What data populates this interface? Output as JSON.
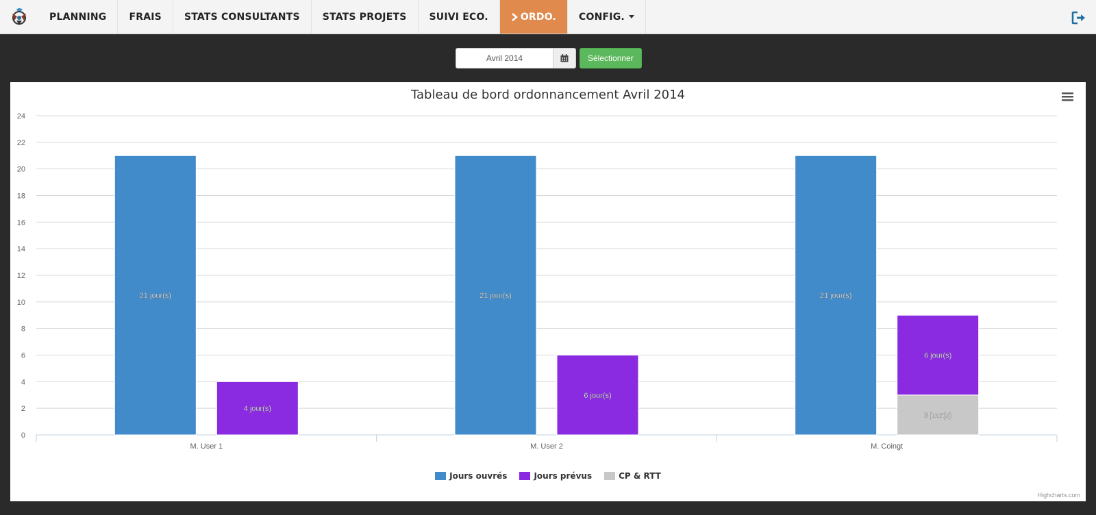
{
  "nav": {
    "items": [
      {
        "label": "PLANNING",
        "active": false
      },
      {
        "label": "FRAIS",
        "active": false
      },
      {
        "label": "STATS CONSULTANTS",
        "active": false
      },
      {
        "label": "STATS PROJETS",
        "active": false
      },
      {
        "label": "SUIVI ECO.",
        "active": false
      },
      {
        "label": "ORDO.",
        "active": true
      },
      {
        "label": "CONFIG.",
        "active": false,
        "dropdown": true
      }
    ]
  },
  "toolbar": {
    "month_value": "Avril 2014",
    "select_label": "Sélectionner"
  },
  "colors": {
    "active_nav": "#e08a4e",
    "select_button": "#5cb85c"
  },
  "icons": {
    "brand": "logo-icon",
    "calendar": "calendar-icon",
    "logout": "logout-icon",
    "menu": "hamburger-menu-icon"
  },
  "chart_data": {
    "type": "bar",
    "title": "Tableau de bord ordonnancement Avril 2014",
    "credits": "Highcharts.com",
    "categories": [
      "M. User 1",
      "M. User 2",
      "M. Coingt"
    ],
    "ylim": [
      0,
      24
    ],
    "yticks": [
      0,
      2,
      4,
      6,
      8,
      10,
      12,
      14,
      16,
      18,
      20,
      22,
      24
    ],
    "grid": true,
    "legend_position": "bottom-center",
    "label_suffix": " jour(s)",
    "series": [
      {
        "name": "Jours ouvrés",
        "color": "#428bca",
        "stack": "ouvres",
        "values": [
          21,
          21,
          21
        ]
      },
      {
        "name": "Jours prévus",
        "color": "#8a2be2",
        "stack": "prevus",
        "values": [
          4,
          6,
          6
        ]
      },
      {
        "name": "CP & RTT",
        "color": "#c8c8c8",
        "stack": "prevus",
        "values": [
          0,
          0,
          3
        ]
      }
    ]
  }
}
